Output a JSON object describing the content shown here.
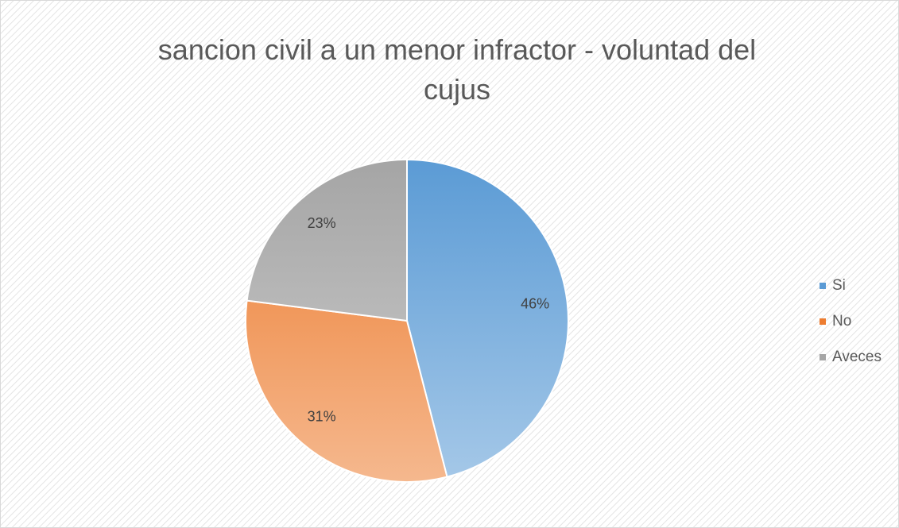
{
  "chart_data": {
    "type": "pie",
    "title": "sancion civil a un menor infractor - voluntad del cujus",
    "categories": [
      "Si",
      "No",
      "Aveces"
    ],
    "values": [
      46,
      31,
      23
    ],
    "value_labels": [
      "46%",
      "31%",
      "23%"
    ],
    "colors": [
      "#5b9bd5",
      "#ed7d31",
      "#a5a5a5"
    ],
    "legend": "right"
  }
}
